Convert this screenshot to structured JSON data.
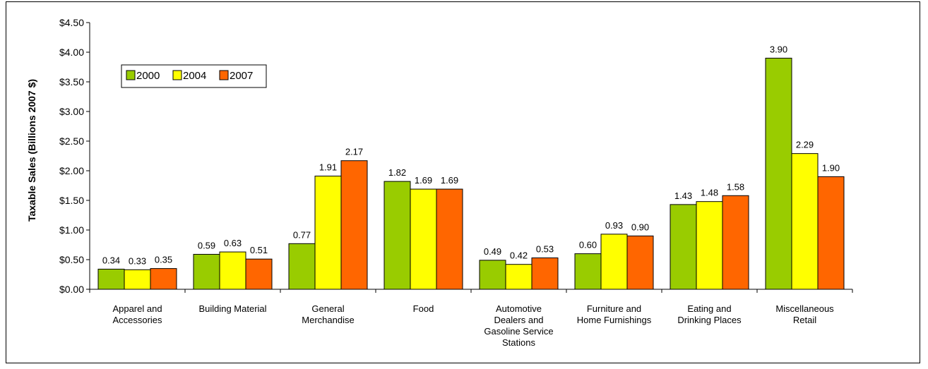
{
  "chart_data": {
    "type": "bar",
    "title": "",
    "xlabel": "",
    "ylabel": "Taxable Sales (Billions 2007 $)",
    "ylim": [
      0,
      4.5
    ],
    "yticks": [
      "$0.00",
      "$0.50",
      "$1.00",
      "$1.50",
      "$2.00",
      "$2.50",
      "$3.00",
      "$3.50",
      "$4.00",
      "$4.50"
    ],
    "grid": false,
    "legend_position": "top-left",
    "categories": [
      [
        "Apparel and",
        "Accessories"
      ],
      [
        "Building Material"
      ],
      [
        "General",
        "Merchandise"
      ],
      [
        "Food"
      ],
      [
        "Automotive",
        "Dealers and",
        "Gasoline Service",
        "Stations"
      ],
      [
        "Furniture and",
        "Home Furnishings"
      ],
      [
        "Eating and",
        "Drinking Places"
      ],
      [
        "Miscellaneous",
        "Retail"
      ]
    ],
    "series": [
      {
        "name": "2000",
        "color": "#99CC00",
        "values": [
          0.34,
          0.59,
          0.77,
          1.82,
          0.49,
          0.6,
          1.43,
          3.9
        ],
        "labels": [
          "0.34",
          "0.59",
          "0.77",
          "1.82",
          "0.49",
          "0.60",
          "1.43",
          "3.90"
        ]
      },
      {
        "name": "2004",
        "color": "#FFFF00",
        "values": [
          0.33,
          0.63,
          1.91,
          1.69,
          0.42,
          0.93,
          1.48,
          2.29
        ],
        "labels": [
          "0.33",
          "0.63",
          "1.91",
          "1.69",
          "0.42",
          "0.93",
          "1.48",
          "2.29"
        ]
      },
      {
        "name": "2007",
        "color": "#FF6600",
        "values": [
          0.35,
          0.51,
          2.17,
          1.69,
          0.53,
          0.9,
          1.58,
          1.9
        ],
        "labels": [
          "0.35",
          "0.51",
          "2.17",
          "1.69",
          "0.53",
          "0.90",
          "1.58",
          "1.90"
        ]
      }
    ]
  }
}
